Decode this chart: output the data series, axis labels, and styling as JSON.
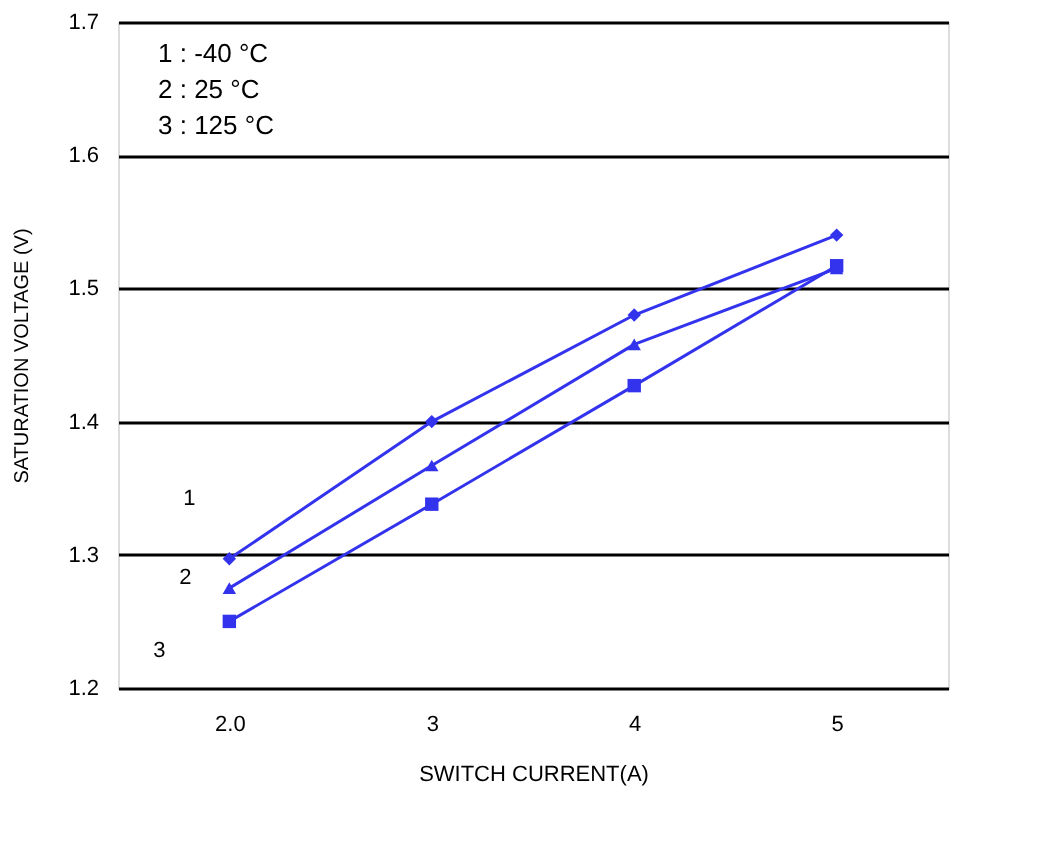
{
  "chart_data": {
    "type": "line",
    "xlabel": "SWITCH CURRENT(A)",
    "ylabel": "SATURATION VOLTAGE (V)",
    "categories": [
      "2.0",
      "3",
      "4",
      "5"
    ],
    "ylim": [
      1.2,
      1.7
    ],
    "yticks": [
      1.2,
      1.3,
      1.4,
      1.5,
      1.6,
      1.7
    ],
    "grid": "y",
    "line_style": "solid",
    "series": [
      {
        "name": "1",
        "color": "#3333ee",
        "marker": "diamond",
        "values": [
          1.297,
          1.4,
          1.48,
          1.54
        ]
      },
      {
        "name": "2",
        "color": "#3333ee",
        "marker": "triangle",
        "values": [
          1.275,
          1.367,
          1.458,
          1.515
        ]
      },
      {
        "name": "3",
        "color": "#3333ee",
        "marker": "square",
        "values": [
          1.25,
          1.338,
          1.427,
          1.517
        ]
      }
    ],
    "annotations": [
      "1 : -40 °C",
      "2 : 25 °C",
      "3 : 125 °C"
    ]
  }
}
